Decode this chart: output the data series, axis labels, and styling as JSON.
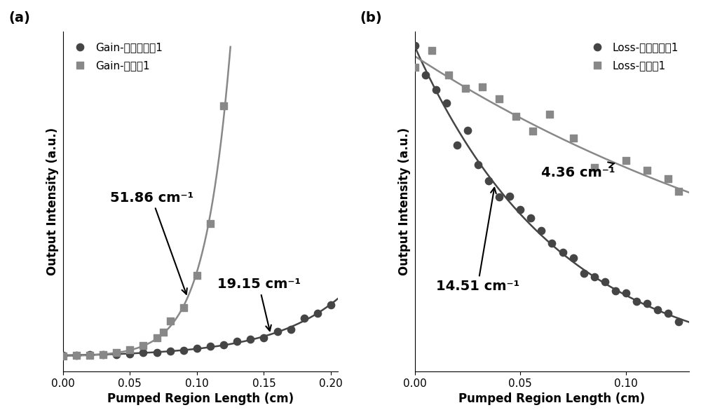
{
  "panel_a": {
    "title": "(a)",
    "xlabel": "Pumped Region Length (cm)",
    "ylabel": "Output Intensity (a.u.)",
    "xlim": [
      0.0,
      0.205
    ],
    "xticks": [
      0.0,
      0.05,
      0.1,
      0.15,
      0.2
    ],
    "legend1_label": "Gain-对比实施例1",
    "legend2_label": "Gain-实施例1",
    "annot1_text": "51.86 cm⁻¹",
    "annot2_text": "19.15 cm⁻¹",
    "dark_color": "#454545",
    "light_color": "#888888",
    "gain_dark": 19.15,
    "gain_light": 51.86
  },
  "panel_b": {
    "title": "(b)",
    "xlabel": "Pumped Region Length (cm)",
    "ylabel": "Output Intensity (a.u.)",
    "xlim": [
      0.0,
      0.13
    ],
    "xticks": [
      0.0,
      0.05,
      0.1
    ],
    "legend1_label": "Loss-对比实施例1",
    "legend2_label": "Loss-实施例1",
    "annot1_text": "4.36 cm⁻¹",
    "annot2_text": "14.51 cm⁻¹",
    "dark_color": "#454545",
    "light_color": "#888888",
    "loss_dark": 14.51,
    "loss_light": 4.36
  },
  "fig_bg": "#ffffff",
  "marker_size": 55,
  "line_width": 1.8,
  "font_size_label": 12,
  "font_size_tick": 11,
  "font_size_legend": 11,
  "font_size_annot": 14,
  "font_size_panel": 14
}
